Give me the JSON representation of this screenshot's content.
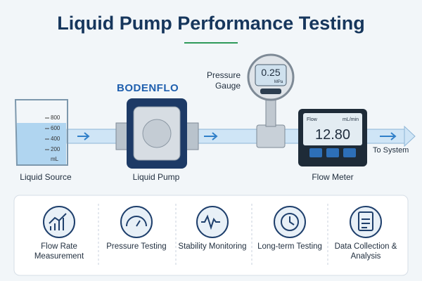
{
  "header": {
    "title": "Liquid Pump Performance Testing"
  },
  "brand": "BODENFLO",
  "beaker": {
    "scale": [
      "800",
      "600",
      "400",
      "200"
    ],
    "unit": "mL"
  },
  "gauge": {
    "label": "Pressure Gauge",
    "reading": "0.25",
    "unit": "MPa"
  },
  "flow_meter": {
    "caption": "Flow",
    "unit": "mL/min",
    "reading": "12.80"
  },
  "stages": [
    "Liquid Source",
    "Liquid Pump",
    "Flow Meter"
  ],
  "outlet": "To System",
  "features": [
    "Flow Rate Measurement",
    "Pressure Testing",
    "Stability Monitoring",
    "Long-term Testing",
    "Data Collection & Analysis"
  ]
}
